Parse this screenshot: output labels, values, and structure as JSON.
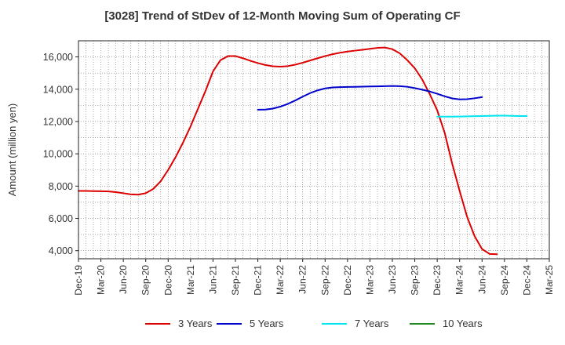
{
  "chart_data": {
    "type": "line",
    "title": "[3028]  Trend of StDev of 12-Month Moving Sum of Operating CF",
    "xlabel": "",
    "ylabel": "Amount (million yen)",
    "ylim": [
      3500,
      17000
    ],
    "y_ticks": [
      "4,000",
      "6,000",
      "8,000",
      "10,000",
      "12,000",
      "14,000",
      "16,000"
    ],
    "x_ticks": [
      "Dec-19",
      "Mar-20",
      "Jun-20",
      "Sep-20",
      "Dec-20",
      "Mar-21",
      "Jun-21",
      "Sep-21",
      "Dec-21",
      "Mar-22",
      "Jun-22",
      "Sep-22",
      "Dec-22",
      "Mar-23",
      "Jun-23",
      "Sep-23",
      "Dec-23",
      "Mar-24",
      "Jun-24",
      "Sep-24",
      "Dec-24",
      "Mar-25"
    ],
    "grid": true,
    "legend_position": "bottom",
    "series": [
      {
        "name": "3 Years",
        "color": "#dd0000",
        "start": "Dec-19",
        "values": [
          7700,
          7700,
          7690,
          7680,
          7670,
          7630,
          7560,
          7490,
          7470,
          7560,
          7820,
          8300,
          9000,
          9800,
          10700,
          11700,
          12800,
          13900,
          15100,
          15800,
          16050,
          16050,
          15920,
          15760,
          15620,
          15500,
          15420,
          15400,
          15430,
          15520,
          15640,
          15780,
          15920,
          16050,
          16170,
          16260,
          16330,
          16390,
          16440,
          16500,
          16560,
          16580,
          16480,
          16220,
          15800,
          15300,
          14600,
          13700,
          12700,
          11300,
          9400,
          7700,
          6100,
          4900,
          4100,
          3800,
          3780
        ]
      },
      {
        "name": "5 Years",
        "color": "#0000cc",
        "start": "Dec-21",
        "values": [
          12730,
          12740,
          12800,
          12920,
          13090,
          13300,
          13540,
          13760,
          13930,
          14050,
          14110,
          14130,
          14140,
          14150,
          14160,
          14170,
          14180,
          14190,
          14200,
          14190,
          14150,
          14070,
          13970,
          13860,
          13720,
          13560,
          13430,
          13370,
          13380,
          13440,
          13510
        ]
      },
      {
        "name": "7 Years",
        "color": "#00e5ee",
        "start": "Dec-23",
        "values": [
          12300,
          12300,
          12300,
          12310,
          12320,
          12330,
          12340,
          12350,
          12360,
          12360,
          12350,
          12340,
          12340
        ]
      },
      {
        "name": "10 Years",
        "color": "#228822",
        "start": "Dec-24",
        "values": []
      }
    ]
  }
}
